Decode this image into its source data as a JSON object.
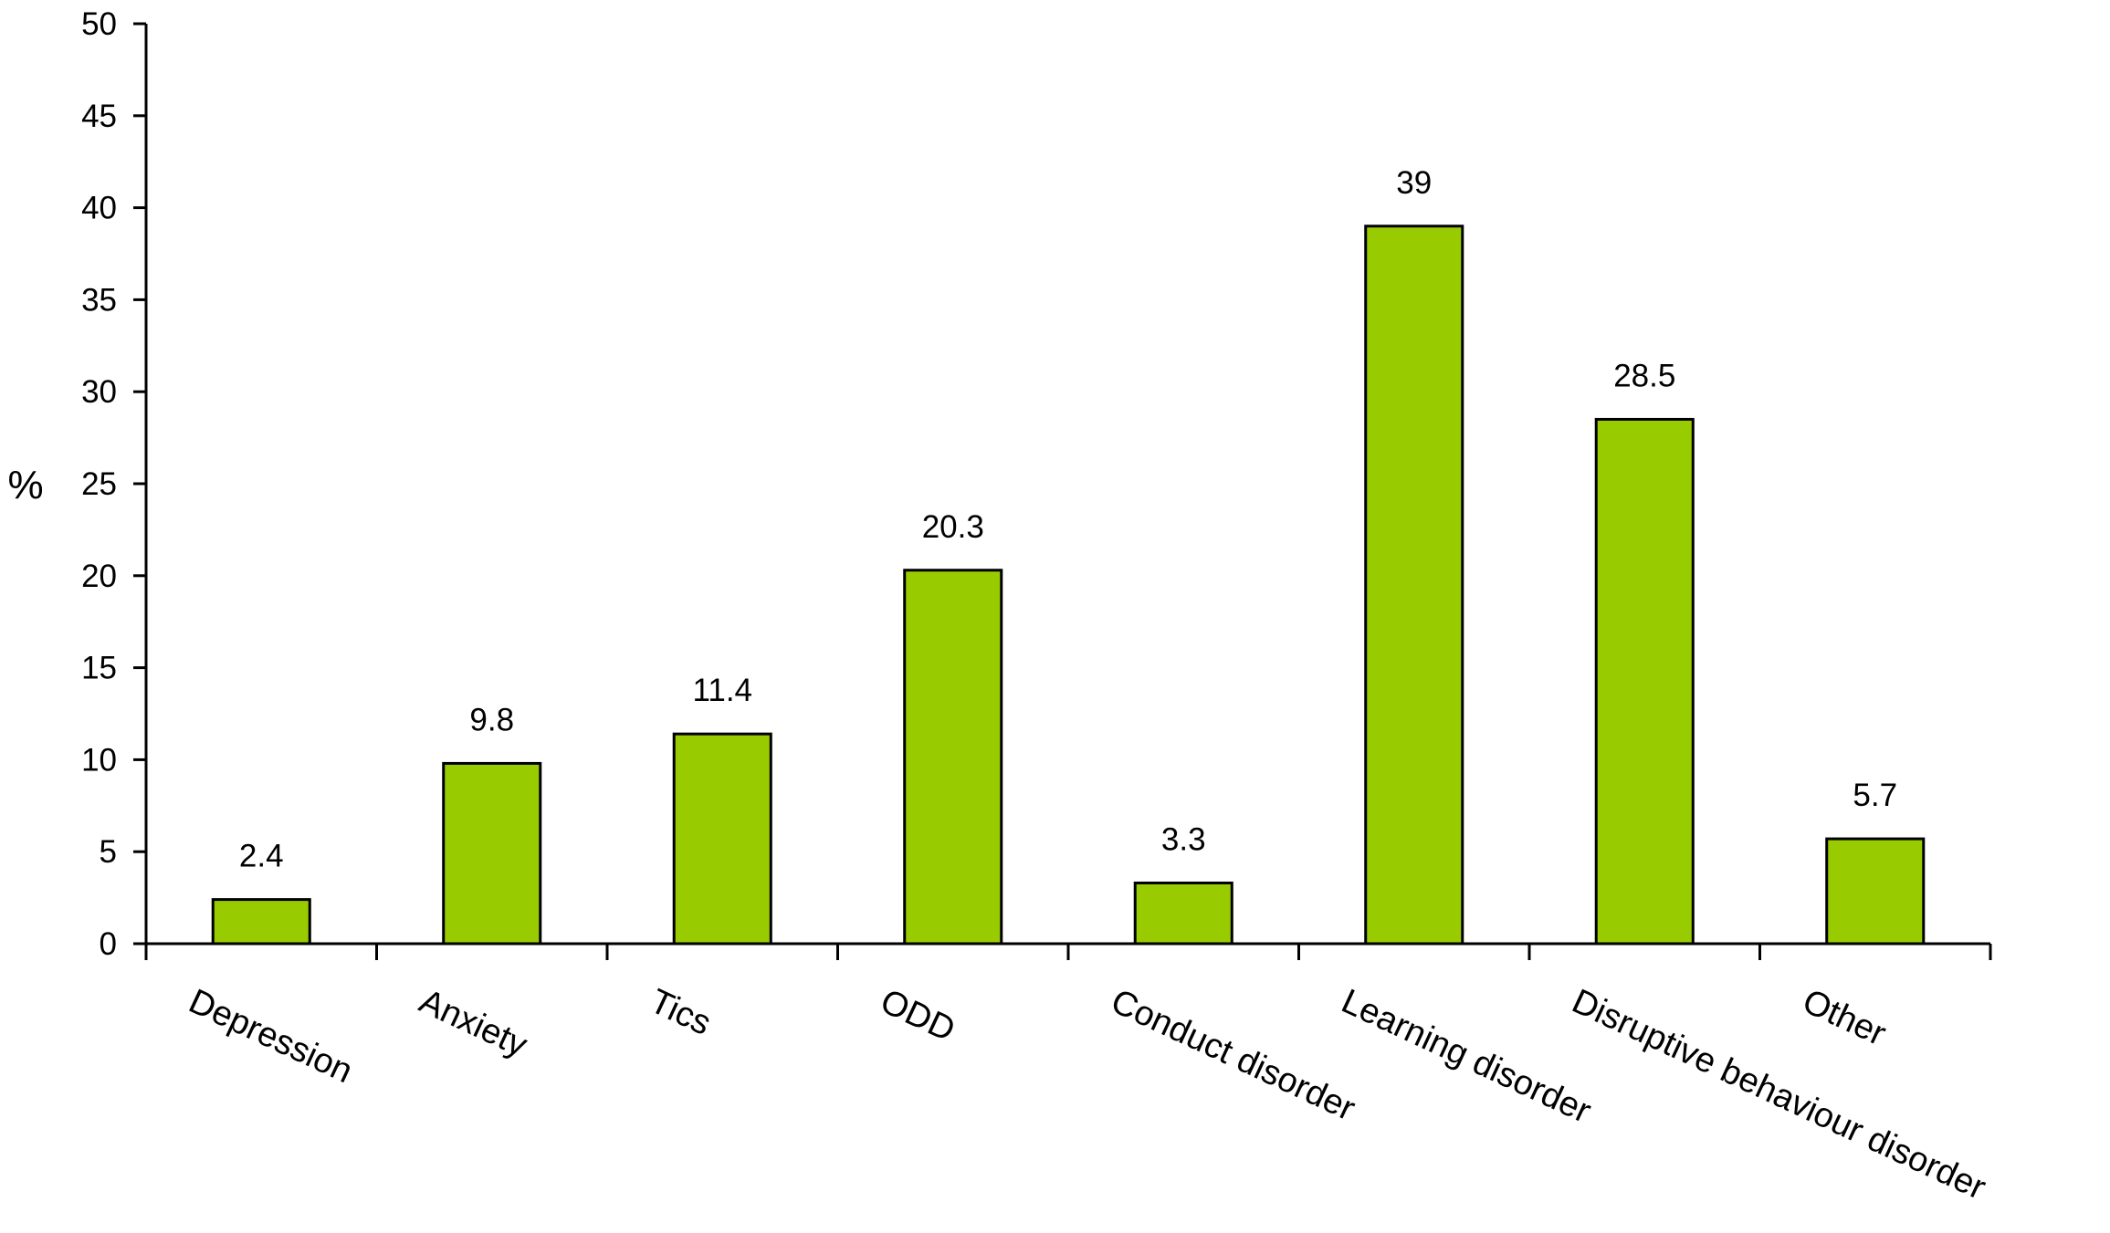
{
  "chart_data": {
    "type": "bar",
    "title": "",
    "xlabel": "",
    "ylabel": "%",
    "ylim": [
      0,
      50
    ],
    "yticks": [
      0,
      5,
      10,
      15,
      20,
      25,
      30,
      35,
      40,
      45,
      50
    ],
    "grid": false,
    "categories": [
      "Depression",
      "Anxiety",
      "Tics",
      "ODD",
      "Conduct disorder",
      "Learning disorder",
      "Disruptive behaviour disorder",
      "Other"
    ],
    "values": [
      2.4,
      9.8,
      11.4,
      20.3,
      3.3,
      39,
      28.5,
      5.7
    ],
    "value_labels": [
      "2.4",
      "9.8",
      "11.4",
      "20.3",
      "3.3",
      "39",
      "28.5",
      "5.7"
    ],
    "bar_color": "#99cc00",
    "bar_outline": "#000000"
  }
}
